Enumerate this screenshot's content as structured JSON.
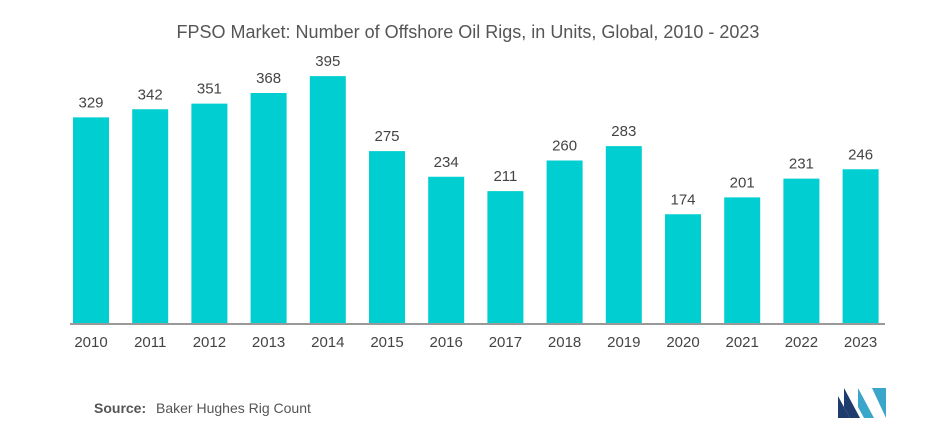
{
  "chart_data": {
    "type": "bar",
    "title": "FPSO Market: Number of Offshore Oil Rigs, in Units, Global, 2010 - 2023",
    "xlabel": "",
    "ylabel": "",
    "categories": [
      "2010",
      "2011",
      "2012",
      "2013",
      "2014",
      "2015",
      "2016",
      "2017",
      "2018",
      "2019",
      "2020",
      "2021",
      "2022",
      "2023"
    ],
    "values": [
      329,
      342,
      351,
      368,
      395,
      275,
      234,
      211,
      260,
      283,
      174,
      201,
      231,
      246
    ],
    "ylim": [
      0,
      400
    ],
    "grid": false,
    "legend": "none",
    "bar_color": "#00CED1",
    "axis_color": "#333333"
  },
  "source": {
    "label": "Source:",
    "text": "Baker Hughes Rig Count"
  },
  "logo": {
    "icon": "mordor-intelligence-logo-icon",
    "colors": [
      "#1f3c6e",
      "#3aa6c9"
    ]
  }
}
